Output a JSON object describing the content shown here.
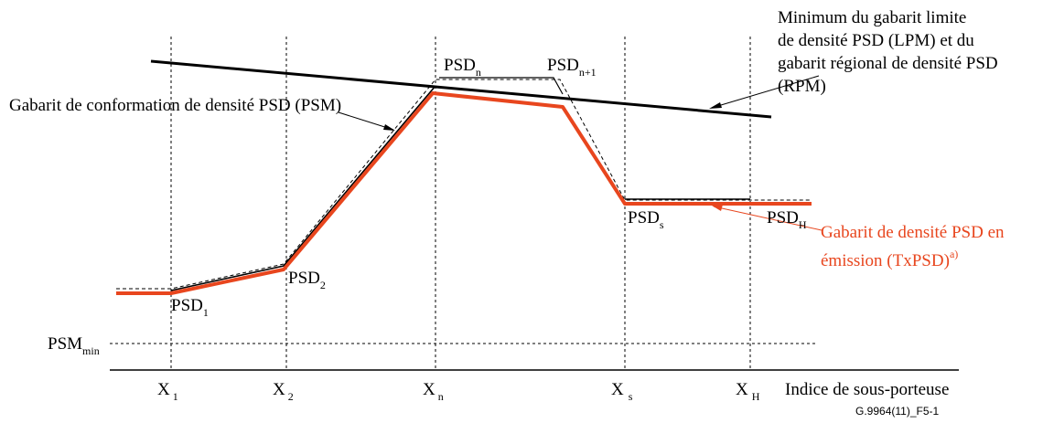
{
  "labels": {
    "lpm_rpm_line1": "Minimum du gabarit limite",
    "lpm_rpm_line2": "de densité PSD (LPM) et du",
    "lpm_rpm_line3": "gabarit régional de densité PSD",
    "lpm_rpm_line4": "(RPM)",
    "psm": "Gabarit de conformation de densité PSD (PSM)",
    "txpsd_line1": "Gabarit de densité PSD en",
    "txpsd_line2_main": "émission (TxPSD)",
    "txpsd_line2_sup": "a)",
    "psm_min_main": "PSM",
    "psm_min_sub": "min",
    "x_axis_title": "Indice de sous-porteuse",
    "figure_id": "G.9964(11)_F5-1"
  },
  "points": [
    {
      "main": "PSD",
      "sub": "1"
    },
    {
      "main": "PSD",
      "sub": "2"
    },
    {
      "main": "PSD",
      "sub": "n"
    },
    {
      "main": "PSD",
      "sub": "n+1"
    },
    {
      "main": "PSD",
      "sub": "s"
    },
    {
      "main": "PSD",
      "sub": "H"
    }
  ],
  "x_ticks": [
    {
      "main": "X",
      "sub": "1"
    },
    {
      "main": "X",
      "sub": "2"
    },
    {
      "main": "X",
      "sub": "n"
    },
    {
      "main": "X",
      "sub": "s"
    },
    {
      "main": "X",
      "sub": "H"
    }
  ],
  "colors": {
    "line": "#000000",
    "txpsd": "#e8461e"
  }
}
